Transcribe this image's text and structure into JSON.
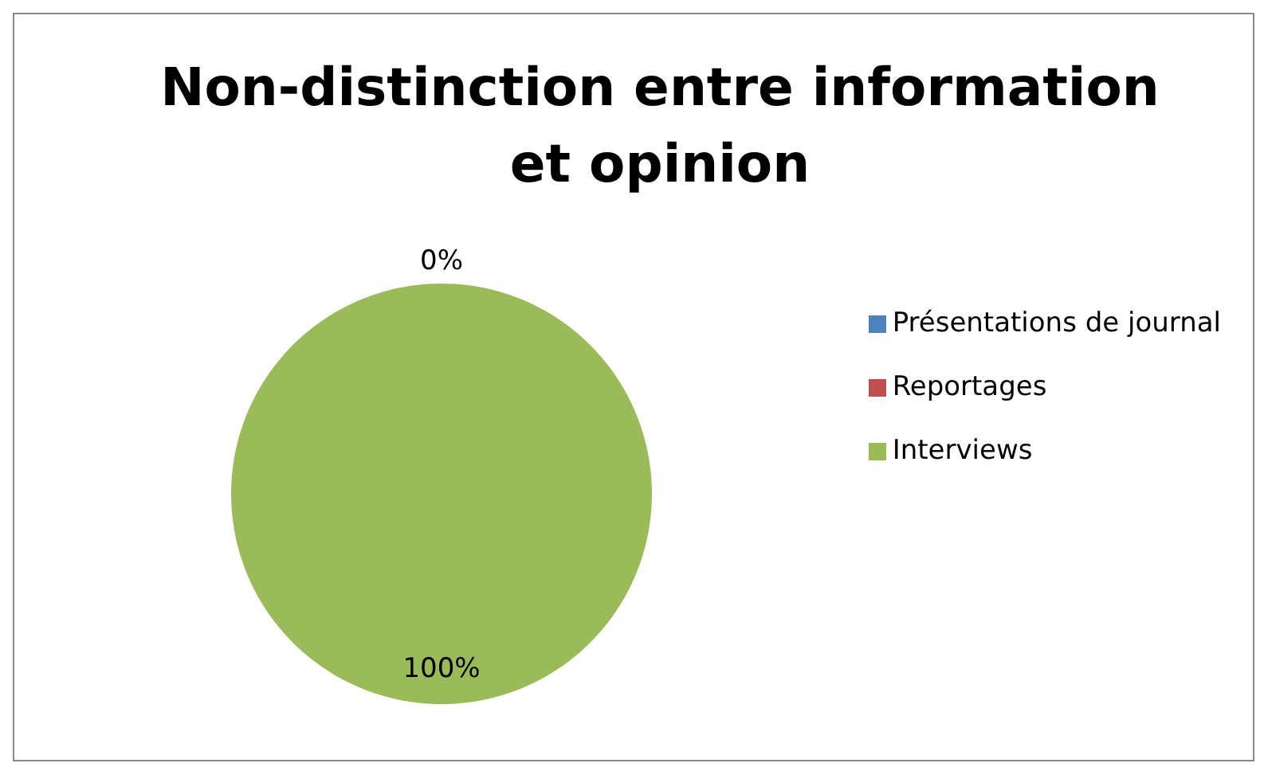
{
  "chart_data": {
    "type": "pie",
    "title": "Non-distinction entre information et opinion",
    "categories": [
      "Présentations de journal",
      "Reportages",
      "Interviews"
    ],
    "values": [
      0,
      0,
      100
    ],
    "colors": [
      "#4f81bd",
      "#c0504d",
      "#9bbb59"
    ],
    "value_labels": [
      "0%",
      null,
      "100%"
    ],
    "legend": "right"
  }
}
